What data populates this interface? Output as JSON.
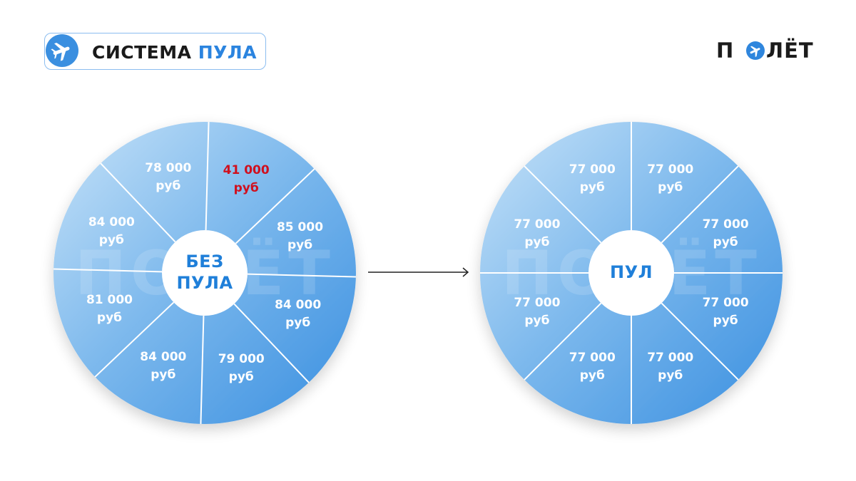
{
  "header": {
    "badge_word1": "СИСТЕМА",
    "badge_word2": "ПУЛА",
    "badge_icon": "airplane-icon",
    "brand_left": "П",
    "brand_right": "ЛЁТ",
    "brand_icon": "airplane-in-circle-icon"
  },
  "colors": {
    "accent": "#2b84df",
    "segment_light": "#bcdcf6",
    "segment_dark": "#3b90e0",
    "alert": "#d0101e"
  },
  "diagram": {
    "left": {
      "center_line1": "БЕЗ",
      "center_line2": "ПУЛА",
      "watermark": "ПОЛЁТ",
      "segments": [
        {
          "amount": "41 000",
          "currency": "руб",
          "highlight": true
        },
        {
          "amount": "85 000",
          "currency": "руб",
          "highlight": false
        },
        {
          "amount": "84 000",
          "currency": "руб",
          "highlight": false
        },
        {
          "amount": "79 000",
          "currency": "руб",
          "highlight": false
        },
        {
          "amount": "84 000",
          "currency": "руб",
          "highlight": false
        },
        {
          "amount": "81 000",
          "currency": "руб",
          "highlight": false
        },
        {
          "amount": "84 000",
          "currency": "руб",
          "highlight": false
        },
        {
          "amount": "78 000",
          "currency": "руб",
          "highlight": false
        }
      ]
    },
    "right": {
      "center_line1": "ПУЛ",
      "center_line2": "",
      "watermark": "ПОЛЁТ",
      "segments": [
        {
          "amount": "77 000",
          "currency": "руб",
          "highlight": false
        },
        {
          "amount": "77 000",
          "currency": "руб",
          "highlight": false
        },
        {
          "amount": "77 000",
          "currency": "руб",
          "highlight": false
        },
        {
          "amount": "77 000",
          "currency": "руб",
          "highlight": false
        },
        {
          "amount": "77 000",
          "currency": "руб",
          "highlight": false
        },
        {
          "amount": "77 000",
          "currency": "руб",
          "highlight": false
        },
        {
          "amount": "77 000",
          "currency": "руб",
          "highlight": false
        },
        {
          "amount": "77 000",
          "currency": "руб",
          "highlight": false
        }
      ]
    }
  }
}
